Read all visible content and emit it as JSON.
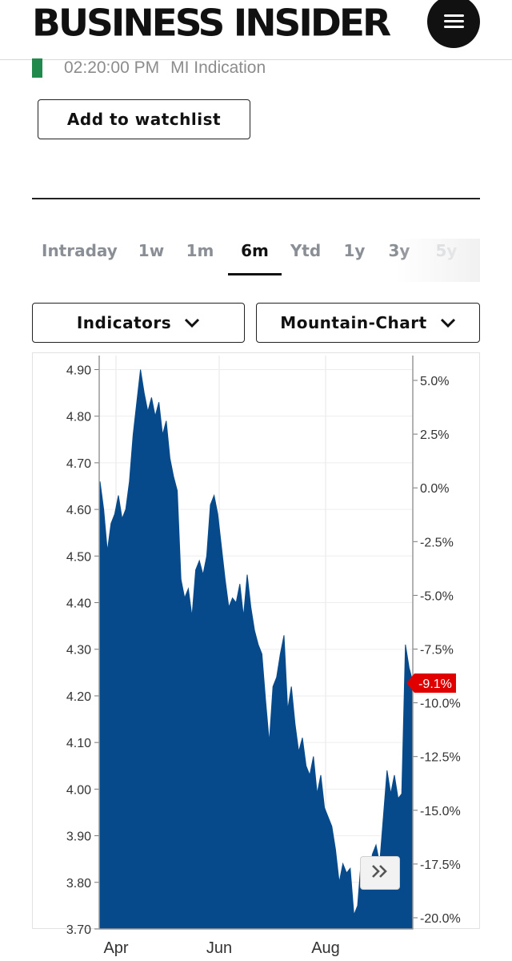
{
  "header": {
    "logo_text": "BUSINESS INSIDER",
    "menu_icon": "hamburger-icon"
  },
  "quote_status": {
    "indicator_color": "#1f8a4c",
    "time": "02:20:00 PM",
    "source": "MI Indication"
  },
  "actions": {
    "watchlist_label": "Add to watchlist"
  },
  "range_tabs": {
    "items": [
      "Intraday",
      "1w",
      "1m",
      "6m",
      "Ytd",
      "1y",
      "3y",
      "5y"
    ],
    "active": "6m"
  },
  "controls": {
    "indicators_label": "Indicators",
    "chart_type_label": "Mountain-Chart",
    "chevron_icon": "chevron-down-icon"
  },
  "chart_data": {
    "type": "area",
    "color": "#064a8b",
    "x_ticks": [
      "Apr",
      "Jun",
      "Aug"
    ],
    "y_left_ticks": [
      "4.90",
      "4.80",
      "4.70",
      "4.60",
      "4.50",
      "4.40",
      "4.30",
      "4.20",
      "4.10",
      "4.00",
      "3.90",
      "3.80",
      "3.70"
    ],
    "y_right_ticks": [
      "5.0%",
      "2.5%",
      "0.0%",
      "-2.5%",
      "-5.0%",
      "-7.5%",
      "-10.0%",
      "-12.5%",
      "-15.0%",
      "-17.5%",
      "-20.0%"
    ],
    "ylim": [
      3.7,
      4.93
    ],
    "grid": true,
    "current_change_label": "-9.1%",
    "current_change_color": "#e00000",
    "values": [
      4.66,
      4.6,
      4.51,
      4.57,
      4.59,
      4.63,
      4.58,
      4.6,
      4.66,
      4.76,
      4.83,
      4.9,
      4.85,
      4.81,
      4.84,
      4.8,
      4.83,
      4.76,
      4.79,
      4.71,
      4.67,
      4.64,
      4.45,
      4.41,
      4.43,
      4.37,
      4.47,
      4.49,
      4.46,
      4.5,
      4.61,
      4.63,
      4.59,
      4.52,
      4.45,
      4.39,
      4.41,
      4.4,
      4.44,
      4.37,
      4.46,
      4.39,
      4.34,
      4.31,
      4.29,
      4.19,
      4.1,
      4.22,
      4.24,
      4.29,
      4.33,
      4.17,
      4.22,
      4.14,
      4.08,
      4.11,
      4.05,
      4.03,
      4.07,
      3.99,
      4.03,
      3.96,
      3.94,
      3.92,
      3.87,
      3.8,
      3.84,
      3.82,
      3.83,
      3.73,
      3.75,
      3.85,
      3.82,
      3.78,
      3.86,
      3.88,
      3.84,
      3.94,
      4.04,
      3.99,
      4.03,
      3.98,
      3.99,
      4.31,
      4.26,
      4.23
    ],
    "expand_icon": "double-chevron-right-icon"
  }
}
